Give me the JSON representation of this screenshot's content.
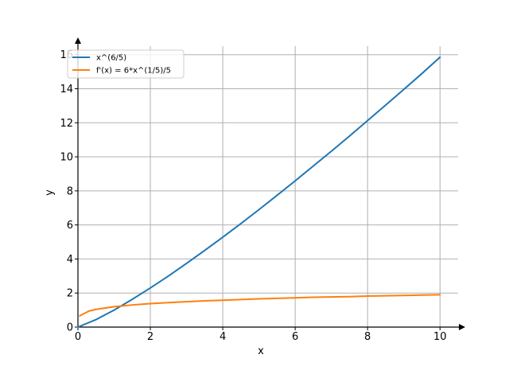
{
  "chart_data": {
    "type": "line",
    "xlabel": "x",
    "ylabel": "y",
    "xlim": [
      0,
      10.5
    ],
    "ylim": [
      0,
      16.5
    ],
    "xticks": [
      0,
      2,
      4,
      6,
      8,
      10
    ],
    "yticks": [
      0,
      2,
      4,
      6,
      8,
      10,
      12,
      14,
      16
    ],
    "grid": true,
    "legend_position": "top-left",
    "series": [
      {
        "name": "x^(6/5)",
        "color": "#1f77b4",
        "x": [
          0,
          0.5,
          1,
          1.5,
          2,
          2.5,
          3,
          3.5,
          4,
          4.5,
          5,
          5.5,
          6,
          6.5,
          7,
          7.5,
          8,
          8.5,
          9,
          9.5,
          10
        ],
        "y": [
          0,
          0.44,
          1,
          1.63,
          2.3,
          3.0,
          3.74,
          4.5,
          5.28,
          6.08,
          6.9,
          7.74,
          8.59,
          9.46,
          10.33,
          11.22,
          12.13,
          13.04,
          13.96,
          14.89,
          15.85
        ]
      },
      {
        "name": "f'(x) = 6*x^(1/5)/5",
        "color": "#ff7f0e",
        "x": [
          0.05,
          0.3,
          0.5,
          1,
          1.5,
          2,
          2.5,
          3,
          3.5,
          4,
          4.5,
          5,
          5.5,
          6,
          6.5,
          7,
          7.5,
          8,
          8.5,
          9,
          9.5,
          10
        ],
        "y": [
          0.66,
          0.94,
          1.04,
          1.2,
          1.3,
          1.38,
          1.44,
          1.49,
          1.54,
          1.58,
          1.62,
          1.66,
          1.69,
          1.72,
          1.75,
          1.77,
          1.79,
          1.82,
          1.84,
          1.86,
          1.88,
          1.9
        ]
      }
    ]
  }
}
